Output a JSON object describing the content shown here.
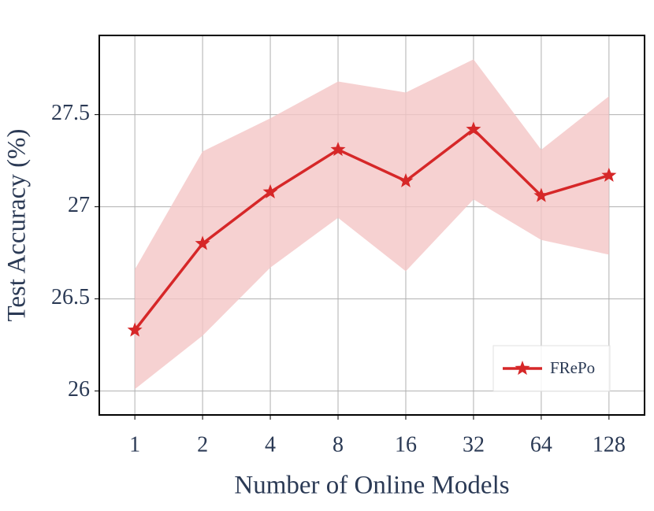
{
  "chart_data": {
    "type": "line",
    "xlabel": "Number of Online Models",
    "ylabel": "Test Accuracy (%)",
    "categories": [
      "1",
      "2",
      "4",
      "8",
      "16",
      "32",
      "64",
      "128"
    ],
    "series": [
      {
        "name": "FRePo",
        "color": "#d62728",
        "values": [
          26.33,
          26.8,
          27.08,
          27.31,
          27.14,
          27.42,
          27.06,
          27.17
        ],
        "band": {
          "upper": [
            26.66,
            27.3,
            27.48,
            27.68,
            27.62,
            27.8,
            27.31,
            27.6
          ],
          "lower": [
            26.01,
            26.3,
            26.67,
            26.94,
            26.65,
            27.04,
            26.82,
            26.74
          ]
        },
        "band_color": "#f4c6c6"
      }
    ],
    "ylim": [
      25.87,
      27.93
    ],
    "yticks": [
      26,
      26.5,
      27,
      27.5
    ],
    "grid": true,
    "legend": "lower right"
  }
}
